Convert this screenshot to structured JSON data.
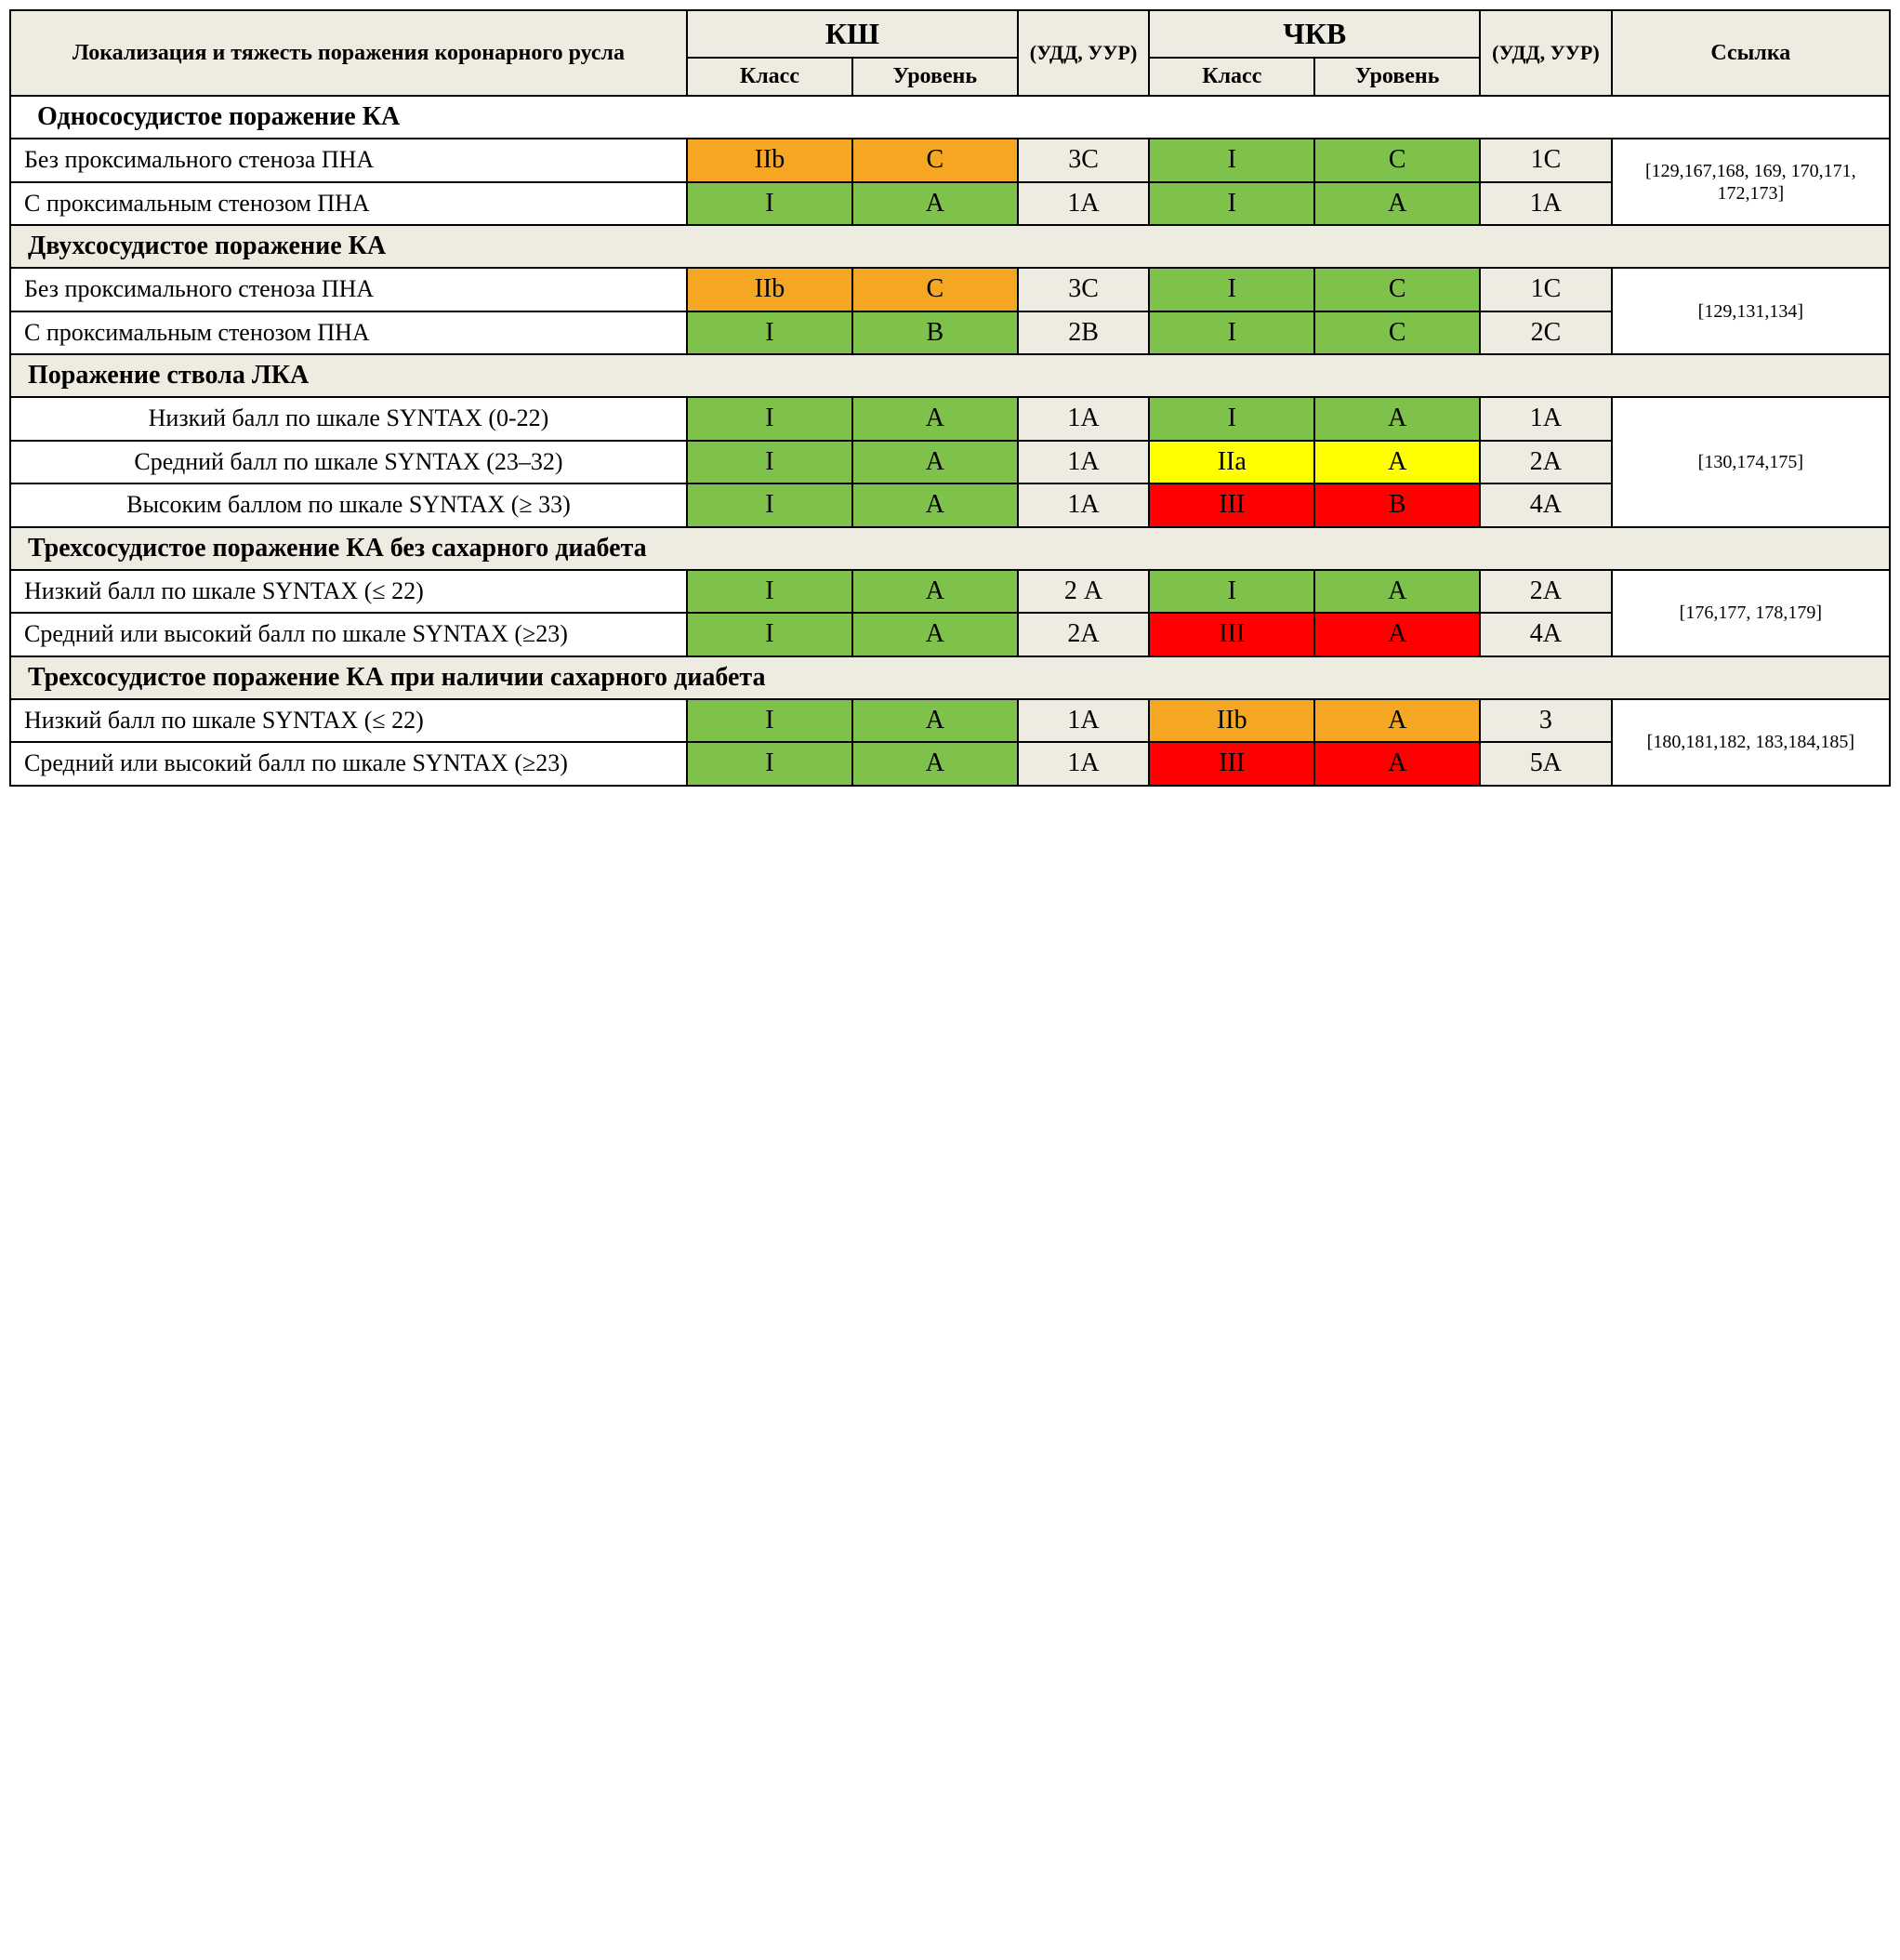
{
  "colors": {
    "green": "#7fc24b",
    "orange": "#f5a623",
    "yellow": "#ffff00",
    "red": "#ff0000",
    "header_bg": "#eeece1",
    "border": "#000000",
    "white": "#ffffff"
  },
  "fonts": {
    "family": "Times New Roman",
    "hdr_big_pt": 32,
    "hdr_mid_pt": 24,
    "hdr_sm_pt": 22,
    "section_pt": 28,
    "cell_pt": 28,
    "ref_pt": 20
  },
  "header": {
    "col_label": "Локализация и тяжесть поражения коронарного русла",
    "ksh": "КШ",
    "chkv": "ЧКВ",
    "udd": "(УДД, УУР)",
    "ref": "Ссылка",
    "class": "Класс",
    "level": "Уровень"
  },
  "sections": [
    {
      "title": "Однососудистое поражение КА",
      "white": true,
      "ref": "[129,167,168, 169, 170,171, 172,173]",
      "rows": [
        {
          "label": "Без проксимального стеноза ПНА",
          "align": "justify",
          "ksh": {
            "class": {
              "v": "IIb",
              "c": "o"
            },
            "level": {
              "v": "C",
              "c": "o"
            }
          },
          "udd1": "3С",
          "chkv": {
            "class": {
              "v": "I",
              "c": "g"
            },
            "level": {
              "v": "C",
              "c": "g"
            }
          },
          "udd2": "1С"
        },
        {
          "label": "С проксимальным стенозом ПНА",
          "align": "justify",
          "ksh": {
            "class": {
              "v": "I",
              "c": "g"
            },
            "level": {
              "v": "A",
              "c": "g"
            }
          },
          "udd1": "1А",
          "chkv": {
            "class": {
              "v": "I",
              "c": "g"
            },
            "level": {
              "v": "A",
              "c": "g"
            }
          },
          "udd2": "1А"
        }
      ]
    },
    {
      "title": "Двухсосудистое поражение КА",
      "white": false,
      "ref": "[129,131,134]",
      "rows": [
        {
          "label": "Без проксимального стеноза ПНА",
          "align": "justify",
          "ksh": {
            "class": {
              "v": "IIb",
              "c": "o"
            },
            "level": {
              "v": "C",
              "c": "o"
            }
          },
          "udd1": "3С",
          "chkv": {
            "class": {
              "v": "I",
              "c": "g"
            },
            "level": {
              "v": "C",
              "c": "g"
            }
          },
          "udd2": "1С"
        },
        {
          "label": "С проксимальным стенозом ПНА",
          "align": "justify",
          "ksh": {
            "class": {
              "v": "I",
              "c": "g"
            },
            "level": {
              "v": "B",
              "c": "g"
            }
          },
          "udd1": "2В",
          "chkv": {
            "class": {
              "v": "I",
              "c": "g"
            },
            "level": {
              "v": "C",
              "c": "g"
            }
          },
          "udd2": "2С"
        }
      ]
    },
    {
      "title": "Поражение ствола ЛКА",
      "white": false,
      "ref": "[130,174,175]",
      "rows": [
        {
          "label": "Низкий балл по шкале SYNTAX (0-22)",
          "align": "center",
          "ksh": {
            "class": {
              "v": "I",
              "c": "g"
            },
            "level": {
              "v": "A",
              "c": "g"
            }
          },
          "udd1": "1А",
          "chkv": {
            "class": {
              "v": "I",
              "c": "g"
            },
            "level": {
              "v": "A",
              "c": "g"
            }
          },
          "udd2": "1А"
        },
        {
          "label": "Средний балл по шкале SYNTAX (23–32)",
          "align": "center",
          "ksh": {
            "class": {
              "v": "I",
              "c": "g"
            },
            "level": {
              "v": "A",
              "c": "g"
            }
          },
          "udd1": "1А",
          "chkv": {
            "class": {
              "v": "IIa",
              "c": "y"
            },
            "level": {
              "v": "A",
              "c": "y"
            }
          },
          "udd2": "2А"
        },
        {
          "label": "Высоким баллом по шкале SYNTAX (≥ 33)",
          "align": "center",
          "ksh": {
            "class": {
              "v": "I",
              "c": "g"
            },
            "level": {
              "v": "A",
              "c": "g"
            }
          },
          "udd1": "1А",
          "chkv": {
            "class": {
              "v": "III",
              "c": "r"
            },
            "level": {
              "v": "B",
              "c": "r"
            }
          },
          "udd2": "4А"
        }
      ]
    },
    {
      "title": "Трехсосудистое поражение КА без сахарного диабета",
      "white": false,
      "ref": "[176,177, 178,179]",
      "rows": [
        {
          "label": "Низкий балл по шкале SYNTAX (≤ 22)",
          "align": "justify",
          "ksh": {
            "class": {
              "v": "I",
              "c": "g"
            },
            "level": {
              "v": "A",
              "c": "g"
            }
          },
          "udd1": "2 А",
          "chkv": {
            "class": {
              "v": "I",
              "c": "g"
            },
            "level": {
              "v": "A",
              "c": "g"
            }
          },
          "udd2": "2А"
        },
        {
          "label": "Средний или высокий балл по шкале SYNTAX (≥23)",
          "align": "left",
          "ksh": {
            "class": {
              "v": "I",
              "c": "g"
            },
            "level": {
              "v": "A",
              "c": "g"
            }
          },
          "udd1": "2А",
          "chkv": {
            "class": {
              "v": "III",
              "c": "r"
            },
            "level": {
              "v": "A",
              "c": "r"
            }
          },
          "udd2": "4А"
        }
      ]
    },
    {
      "title": "Трехсосудистое поражение КА при наличии сахарного диабета",
      "white": false,
      "ref": "[180,181,182, 183,184,185]",
      "rows": [
        {
          "label": "Низкий балл по шкале SYNTAX (≤ 22)",
          "align": "justify",
          "ksh": {
            "class": {
              "v": "I",
              "c": "g"
            },
            "level": {
              "v": "A",
              "c": "g"
            }
          },
          "udd1": "1А",
          "chkv": {
            "class": {
              "v": "IIb",
              "c": "o"
            },
            "level": {
              "v": "A",
              "c": "o"
            }
          },
          "udd2": "3"
        },
        {
          "label": "Средний или высокий балл по шкале SYNTAX (≥23)",
          "align": "left",
          "ksh": {
            "class": {
              "v": "I",
              "c": "g"
            },
            "level": {
              "v": "A",
              "c": "g"
            }
          },
          "udd1": "1А",
          "chkv": {
            "class": {
              "v": "III",
              "c": "r"
            },
            "level": {
              "v": "A",
              "c": "r"
            }
          },
          "udd2": "5А"
        }
      ]
    }
  ]
}
